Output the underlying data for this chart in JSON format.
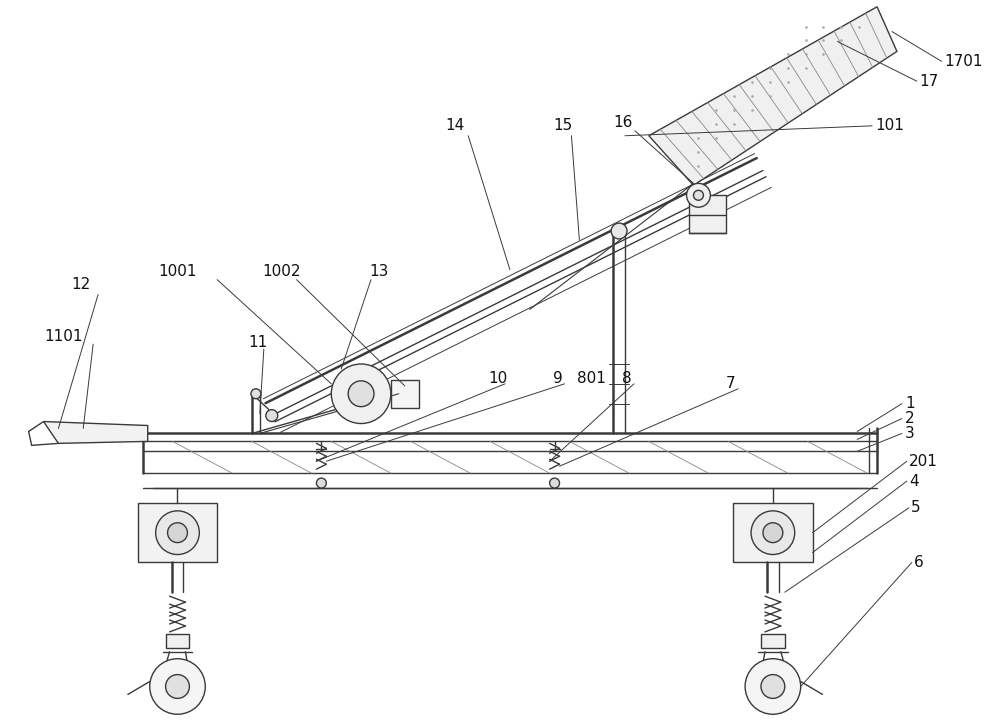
{
  "bg_color": "#ffffff",
  "lc": "#3a3a3a",
  "lw": 1.0,
  "tlw": 1.8,
  "fig_w": 10.0,
  "fig_h": 7.24,
  "dpi": 100,
  "note_fs": 11,
  "note_color": "#111111"
}
